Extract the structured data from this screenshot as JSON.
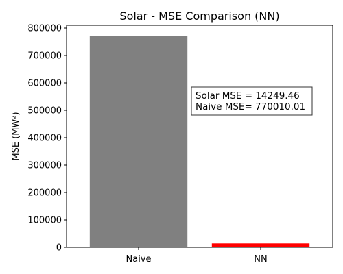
{
  "chart_data": {
    "type": "bar",
    "title": "Solar - MSE Comparison (NN)",
    "xlabel": "",
    "ylabel": "MSE (MW²)",
    "categories": [
      "Naive",
      "NN"
    ],
    "values": [
      770010.01,
      14249.46
    ],
    "bar_colors": [
      "#808080",
      "#ff0000"
    ],
    "ylim": [
      0,
      810000
    ],
    "yticks": [
      0,
      100000,
      200000,
      300000,
      400000,
      500000,
      600000,
      700000,
      800000
    ],
    "ytick_labels": [
      "0",
      "100000",
      "200000",
      "300000",
      "400000",
      "500000",
      "600000",
      "700000",
      "800000"
    ],
    "grid": false,
    "annotation": {
      "lines": [
        "Solar MSE = 14249.46",
        "Naive MSE= 770010.01"
      ]
    }
  }
}
